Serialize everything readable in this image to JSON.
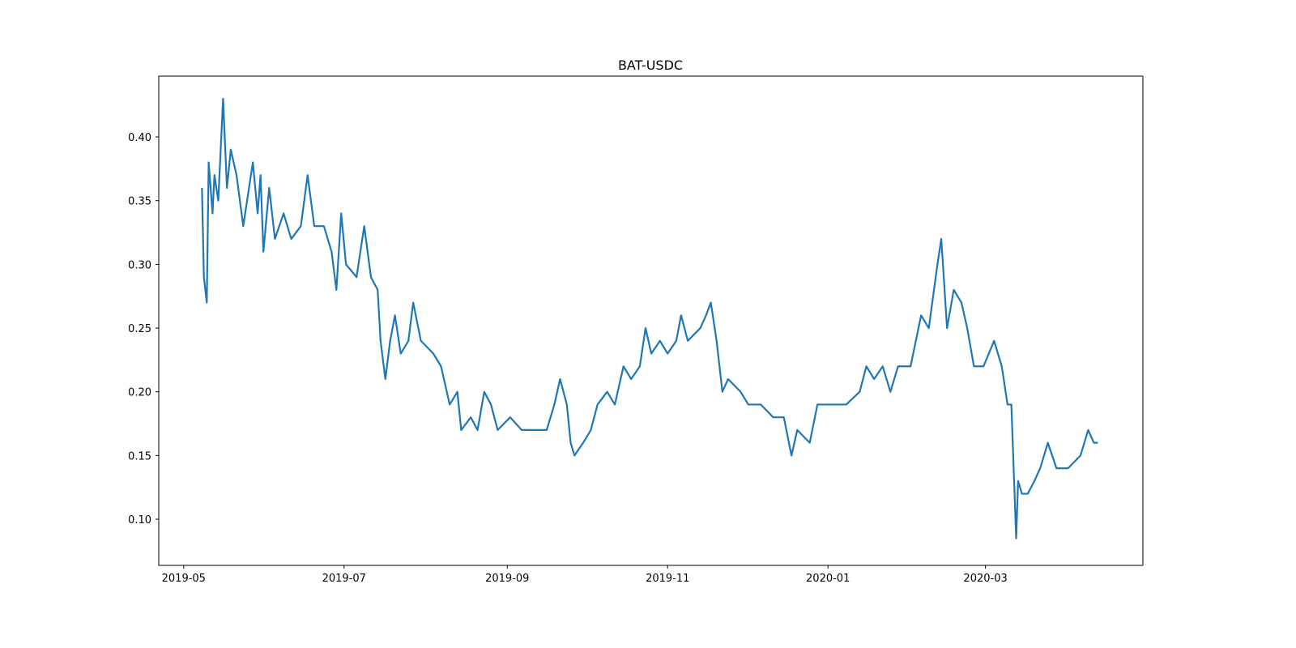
{
  "chart_data": {
    "type": "line",
    "title": "BAT-USDC",
    "xlim": [
      2019.303,
      2020.328
    ],
    "xticks": [
      {
        "value": 2019.329,
        "label": "2019-05"
      },
      {
        "value": 2019.496,
        "label": "2019-07"
      },
      {
        "value": 2019.666,
        "label": "2019-09"
      },
      {
        "value": 2019.833,
        "label": "2019-11"
      },
      {
        "value": 2020.0,
        "label": "2020-01"
      },
      {
        "value": 2020.164,
        "label": "2020-03"
      }
    ],
    "ylim": [
      0.0638,
      0.4477
    ],
    "yticks": [
      {
        "value": 0.1,
        "label": "0.10"
      },
      0.15,
      {
        "value": 0.2,
        "label": "0.20"
      },
      0.25,
      {
        "value": 0.3,
        "label": "0.30"
      },
      0.35,
      {
        "value": 0.4,
        "label": "0.40"
      }
    ],
    "grid": false,
    "series": [
      {
        "name": "BAT-USDC",
        "color": "#1f77b4",
        "x": [
          2019.348,
          2019.35,
          2019.353,
          2019.355,
          2019.359,
          2019.361,
          2019.365,
          2019.37,
          2019.374,
          2019.378,
          2019.384,
          2019.391,
          2019.397,
          2019.401,
          2019.406,
          2019.409,
          2019.412,
          2019.418,
          2019.424,
          2019.433,
          2019.441,
          2019.451,
          2019.458,
          2019.465,
          2019.475,
          2019.483,
          2019.488,
          2019.493,
          2019.498,
          2019.509,
          2019.517,
          2019.524,
          2019.531,
          2019.534,
          2019.539,
          2019.544,
          2019.549,
          2019.555,
          2019.563,
          2019.568,
          2019.576,
          2019.589,
          2019.597,
          2019.606,
          2019.614,
          2019.618,
          2019.628,
          2019.635,
          2019.642,
          2019.649,
          2019.656,
          2019.669,
          2019.681,
          2019.694,
          2019.707,
          2019.715,
          2019.721,
          2019.728,
          2019.732,
          2019.736,
          2019.745,
          2019.753,
          2019.76,
          2019.77,
          2019.778,
          2019.787,
          2019.795,
          2019.804,
          2019.81,
          2019.816,
          2019.825,
          2019.833,
          2019.842,
          2019.847,
          2019.854,
          2019.867,
          2019.873,
          2019.878,
          2019.884,
          2019.89,
          2019.896,
          2019.909,
          2019.917,
          2019.93,
          2019.943,
          2019.954,
          2019.962,
          2019.968,
          2019.981,
          2019.989,
          2020.002,
          2020.019,
          2020.033,
          2020.04,
          2020.048,
          2020.057,
          2020.065,
          2020.073,
          2020.086,
          2020.097,
          2020.105,
          2020.114,
          2020.118,
          2020.124,
          2020.131,
          2020.139,
          2020.145,
          2020.152,
          2020.162,
          2020.173,
          2020.181,
          2020.187,
          2020.191,
          2020.196,
          2020.198,
          2020.202,
          2020.208,
          2020.215,
          2020.221,
          2020.229,
          2020.238,
          2020.25,
          2020.263,
          2020.271,
          2020.277,
          2020.281
        ],
        "values": [
          0.36,
          0.29,
          0.27,
          0.38,
          0.34,
          0.37,
          0.35,
          0.43,
          0.36,
          0.39,
          0.37,
          0.33,
          0.36,
          0.38,
          0.34,
          0.37,
          0.31,
          0.36,
          0.32,
          0.34,
          0.32,
          0.33,
          0.37,
          0.33,
          0.33,
          0.31,
          0.28,
          0.34,
          0.3,
          0.29,
          0.33,
          0.29,
          0.28,
          0.24,
          0.21,
          0.24,
          0.26,
          0.23,
          0.24,
          0.27,
          0.24,
          0.23,
          0.22,
          0.19,
          0.2,
          0.17,
          0.18,
          0.17,
          0.2,
          0.19,
          0.17,
          0.18,
          0.17,
          0.17,
          0.17,
          0.19,
          0.21,
          0.19,
          0.16,
          0.15,
          0.16,
          0.17,
          0.19,
          0.2,
          0.19,
          0.22,
          0.21,
          0.22,
          0.25,
          0.23,
          0.24,
          0.23,
          0.24,
          0.26,
          0.24,
          0.25,
          0.26,
          0.27,
          0.24,
          0.2,
          0.21,
          0.2,
          0.19,
          0.19,
          0.18,
          0.18,
          0.15,
          0.17,
          0.16,
          0.19,
          0.19,
          0.19,
          0.2,
          0.22,
          0.21,
          0.22,
          0.2,
          0.22,
          0.22,
          0.26,
          0.25,
          0.3,
          0.32,
          0.25,
          0.28,
          0.27,
          0.25,
          0.22,
          0.22,
          0.24,
          0.22,
          0.19,
          0.19,
          0.085,
          0.13,
          0.12,
          0.12,
          0.13,
          0.14,
          0.16,
          0.14,
          0.14,
          0.15,
          0.17,
          0.16,
          0.16
        ]
      }
    ]
  }
}
